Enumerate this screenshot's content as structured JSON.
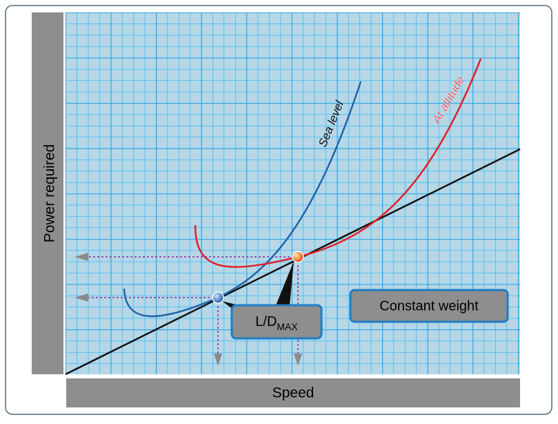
{
  "axes": {
    "y_label": "Power required",
    "x_label": "Speed"
  },
  "curves": {
    "sea_level": "Sea level",
    "at_altitude": "At altitude"
  },
  "callouts": {
    "ld_max": {
      "text": "L/D",
      "subscript": "MAX"
    },
    "constant_weight": "Constant weight"
  }
}
